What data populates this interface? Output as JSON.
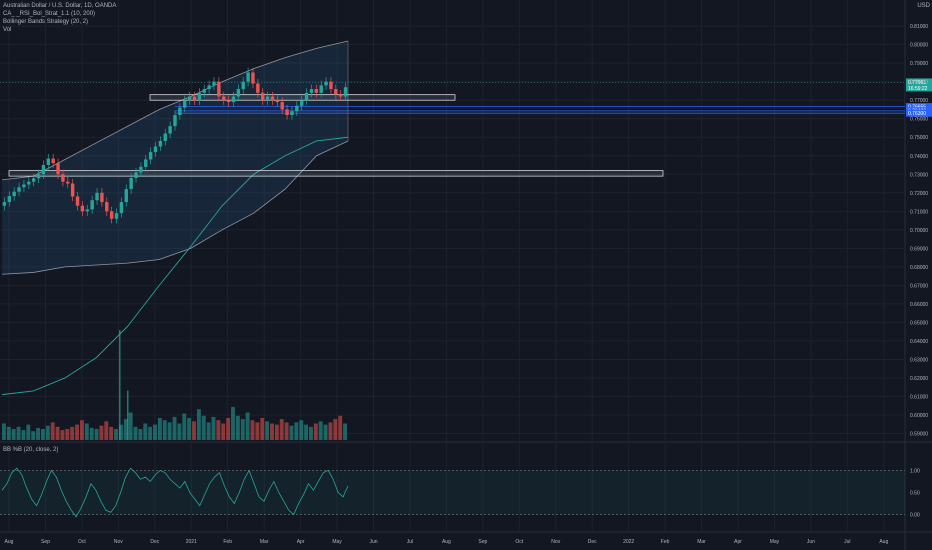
{
  "header": {
    "symbol": "Australian Dollar / U.S. Dollar, 1D, OANDA",
    "ind1": "CA_ _RSI_Bol_Strat_1.1 (10, 200)",
    "ind2": "Bollinger Bands Strategy (20, 2)",
    "ind3": "Vol",
    "osc": "BB %B (20, close, 2)"
  },
  "currency": "USD",
  "colors": {
    "background": "#131722",
    "up": "#26a69a",
    "down": "#ef5350",
    "band": "#b2b5be",
    "ma200": "#26a69a",
    "price_tag": "#26a69a",
    "level_tag": "#2962ff"
  },
  "chart_data": {
    "type": "candlestick",
    "title": "Australian Dollar / U.S. Dollar, 1D, OANDA",
    "y_ticks": [
      "0.81000",
      "0.80000",
      "0.79000",
      "0.78000",
      "0.77000",
      "0.76000",
      "0.75000",
      "0.74000",
      "0.73000",
      "0.72000",
      "0.71000",
      "0.70000",
      "0.69000",
      "0.68000",
      "0.67000",
      "0.66000",
      "0.65000",
      "0.64000",
      "0.63000",
      "0.62000",
      "0.61000",
      "0.60000",
      "0.59000"
    ],
    "ylim": [
      0.5865,
      0.8225
    ],
    "x_ticks": [
      "Aug",
      "Sep",
      "Oct",
      "Nov",
      "Dec",
      "2021",
      "Feb",
      "Mar",
      "Apr",
      "May",
      "Jun",
      "Jul",
      "Aug",
      "Sep",
      "Oct",
      "Nov",
      "Dec",
      "2022",
      "Feb",
      "Mar",
      "Apr",
      "May",
      "Jun",
      "Jul",
      "Aug"
    ],
    "close_series_sampled": [
      0.715,
      0.7182,
      0.7206,
      0.723,
      0.7245,
      0.726,
      0.7278,
      0.73,
      0.735,
      0.7385,
      0.736,
      0.73,
      0.726,
      0.725,
      0.718,
      0.713,
      0.71,
      0.711,
      0.716,
      0.72,
      0.715,
      0.71,
      0.706,
      0.709,
      0.715,
      0.722,
      0.728,
      0.731,
      0.734,
      0.738,
      0.742,
      0.745,
      0.748,
      0.752,
      0.756,
      0.762,
      0.766,
      0.77,
      0.772,
      0.77,
      0.774,
      0.776,
      0.778,
      0.78,
      0.772,
      0.77,
      0.769,
      0.772,
      0.776,
      0.78,
      0.785,
      0.779,
      0.774,
      0.77,
      0.772,
      0.77,
      0.769,
      0.765,
      0.762,
      0.764,
      0.767,
      0.77,
      0.774,
      0.776,
      0.774,
      0.778,
      0.78,
      0.776,
      0.773,
      0.772,
      0.777
    ],
    "bb_upper": [
      0.727,
      0.729,
      0.738,
      0.747,
      0.756,
      0.765,
      0.772,
      0.78,
      0.787,
      0.793,
      0.798,
      0.802
    ],
    "bb_lower": [
      0.676,
      0.677,
      0.68,
      0.681,
      0.682,
      0.684,
      0.69,
      0.7,
      0.709,
      0.722,
      0.74,
      0.748
    ],
    "ma200": [
      0.611,
      0.613,
      0.62,
      0.631,
      0.648,
      0.67,
      0.691,
      0.713,
      0.73,
      0.74,
      0.748,
      0.75
    ],
    "last_price": "0.77961",
    "countdown": "16:59:22",
    "levels": [
      {
        "label": "0.76655",
        "value": 0.76655
      },
      {
        "label": "0.76426",
        "value": 0.76426
      },
      {
        "label": "0.76300",
        "value": 0.763
      }
    ],
    "zones": [
      {
        "from": 0.77,
        "to": 0.773
      },
      {
        "from": 0.729,
        "to": 0.732
      }
    ],
    "volume_sampled": [
      0.15,
      0.12,
      0.1,
      0.12,
      0.09,
      0.14,
      0.08,
      0.11,
      0.1,
      0.13,
      0.16,
      0.12,
      0.09,
      0.1,
      0.12,
      0.14,
      0.18,
      0.15,
      0.11,
      0.1,
      0.13,
      0.17,
      0.12,
      0.1,
      0.14,
      0.19,
      0.25,
      0.12,
      0.1,
      0.15,
      0.12,
      0.14,
      0.2,
      0.18,
      0.16,
      0.21,
      0.15,
      0.24,
      0.2,
      0.17,
      0.28,
      0.22,
      0.16,
      0.21,
      0.18,
      0.15,
      0.2,
      0.3,
      0.22,
      0.19,
      0.25,
      0.18,
      0.16,
      0.2,
      0.17,
      0.15,
      0.14,
      0.19,
      0.16,
      0.13,
      0.16,
      0.18,
      0.14,
      0.12,
      0.15,
      0.17,
      0.14,
      0.16,
      0.19,
      0.22,
      0.15
    ],
    "volume_spikes": [
      1.0,
      0.45
    ],
    "oscillator": {
      "name": "BB %B (20, close, 2)",
      "y_ticks": [
        "1.00",
        "0.50",
        "0.00"
      ],
      "ylim": [
        -0.35,
        1.35
      ],
      "bands": [
        1.0,
        0.0
      ],
      "values": [
        0.55,
        0.7,
        0.95,
        1.05,
        0.9,
        0.6,
        0.35,
        0.2,
        0.45,
        0.75,
        1.0,
        0.85,
        0.55,
        0.3,
        0.1,
        -0.05,
        0.15,
        0.4,
        0.7,
        0.55,
        0.3,
        0.1,
        0.05,
        0.2,
        0.5,
        0.85,
        1.05,
        0.95,
        0.8,
        0.85,
        0.75,
        0.9,
        1.0,
        0.95,
        0.8,
        0.7,
        0.6,
        0.75,
        0.5,
        0.35,
        0.2,
        0.45,
        0.7,
        0.85,
        0.95,
        0.65,
        0.4,
        0.25,
        0.5,
        0.8,
        1.0,
        0.7,
        0.4,
        0.3,
        0.55,
        0.75,
        0.5,
        0.3,
        0.1,
        0.0,
        0.25,
        0.45,
        0.7,
        0.55,
        0.75,
        0.95,
        1.0,
        0.8,
        0.5,
        0.4,
        0.65
      ]
    }
  }
}
